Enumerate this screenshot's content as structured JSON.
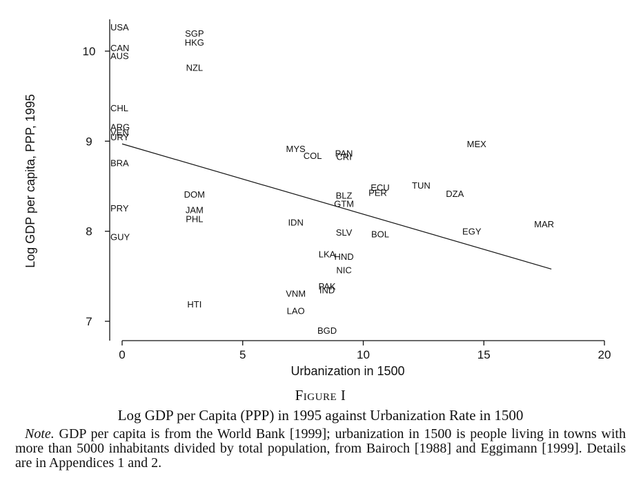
{
  "chart_data": {
    "type": "scatter",
    "xlabel": "Urbanization in 1500",
    "ylabel": "Log GDP per capita, PPP, 1995",
    "xlim": [
      -0.5,
      20.5
    ],
    "ylim": [
      6.77,
      10.35
    ],
    "xticks": [
      0,
      5,
      10,
      15,
      20
    ],
    "yticks": [
      7,
      8,
      9,
      10
    ],
    "grid": false,
    "points": [
      {
        "label": "USA",
        "x": 0,
        "y": 10.27
      },
      {
        "label": "CAN",
        "x": 0,
        "y": 10.04
      },
      {
        "label": "AUS",
        "x": 0,
        "y": 9.95
      },
      {
        "label": "CHL",
        "x": 0,
        "y": 9.37
      },
      {
        "label": "ARG",
        "x": 0,
        "y": 9.16
      },
      {
        "label": "VEN",
        "x": 0,
        "y": 9.1
      },
      {
        "label": "URY",
        "x": 0,
        "y": 9.05
      },
      {
        "label": "BRA",
        "x": 0,
        "y": 8.76
      },
      {
        "label": "PRY",
        "x": 0,
        "y": 8.26
      },
      {
        "label": "GUY",
        "x": 0,
        "y": 7.94
      },
      {
        "label": "SGP",
        "x": 3,
        "y": 10.2
      },
      {
        "label": "HKG",
        "x": 3,
        "y": 10.1
      },
      {
        "label": "NZL",
        "x": 3,
        "y": 9.82
      },
      {
        "label": "DOM",
        "x": 3,
        "y": 8.41
      },
      {
        "label": "JAM",
        "x": 3,
        "y": 8.24
      },
      {
        "label": "PHL",
        "x": 3,
        "y": 8.14
      },
      {
        "label": "HTI",
        "x": 3,
        "y": 7.19
      },
      {
        "label": "MYS",
        "x": 7.2,
        "y": 8.92
      },
      {
        "label": "COL",
        "x": 7.9,
        "y": 8.84
      },
      {
        "label": "IDN",
        "x": 7.2,
        "y": 8.1
      },
      {
        "label": "VNM",
        "x": 7.2,
        "y": 7.31
      },
      {
        "label": "LAO",
        "x": 7.2,
        "y": 7.12
      },
      {
        "label": "LKA",
        "x": 8.5,
        "y": 7.75
      },
      {
        "label": "PAK",
        "x": 8.5,
        "y": 7.39
      },
      {
        "label": "IND",
        "x": 8.5,
        "y": 7.35
      },
      {
        "label": "BGD",
        "x": 8.5,
        "y": 6.9
      },
      {
        "label": "PAN",
        "x": 9.2,
        "y": 8.87
      },
      {
        "label": "CRI",
        "x": 9.2,
        "y": 8.83
      },
      {
        "label": "BLZ",
        "x": 9.2,
        "y": 8.4
      },
      {
        "label": "GTM",
        "x": 9.2,
        "y": 8.31
      },
      {
        "label": "SLV",
        "x": 9.2,
        "y": 7.99
      },
      {
        "label": "HND",
        "x": 9.2,
        "y": 7.72
      },
      {
        "label": "NIC",
        "x": 9.2,
        "y": 7.57
      },
      {
        "label": "ECU",
        "x": 10.7,
        "y": 8.49
      },
      {
        "label": "PER",
        "x": 10.6,
        "y": 8.43
      },
      {
        "label": "BOL",
        "x": 10.7,
        "y": 7.97
      },
      {
        "label": "TUN",
        "x": 12.4,
        "y": 8.51
      },
      {
        "label": "DZA",
        "x": 13.8,
        "y": 8.42
      },
      {
        "label": "MEX",
        "x": 14.7,
        "y": 8.97
      },
      {
        "label": "EGY",
        "x": 14.5,
        "y": 8.0
      },
      {
        "label": "MAR",
        "x": 17.5,
        "y": 8.08
      }
    ],
    "fit_line": {
      "x": [
        0,
        17.8
      ],
      "y": [
        8.97,
        7.58
      ]
    }
  },
  "caption": {
    "figure_label": "Figure I",
    "title": "Log GDP per Capita (PPP) in 1995 against Urbanization Rate in 1500",
    "note_label": "Note.",
    "note_text": " GDP per capita is from the World Bank [1999]; urbanization in 1500 is people living in towns with more than 5000 inhabitants divided by total population, from Bairoch [1988] and Eggimann [1999]. Details are in Appendices 1 and 2."
  }
}
